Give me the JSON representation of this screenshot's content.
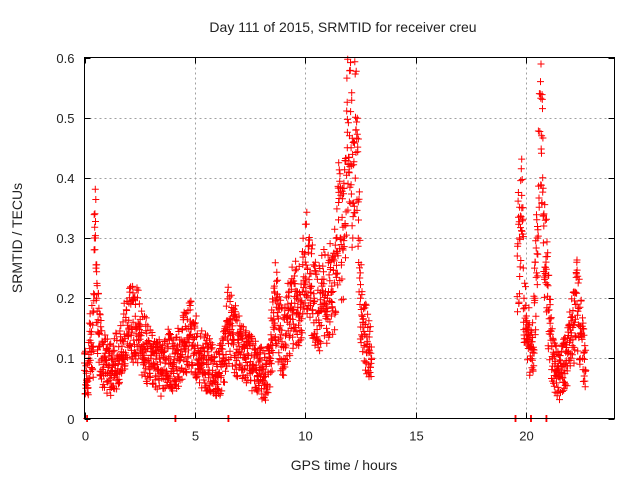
{
  "chart_data": {
    "type": "scatter",
    "title": "Day 111 of 2015, SRMTID for receiver creu",
    "xlabel": "GPS time / hours",
    "ylabel": "SRMTID / TECUs",
    "xlim": [
      0,
      24
    ],
    "ylim": [
      0,
      0.6
    ],
    "xticks": [
      0,
      5,
      10,
      15,
      20
    ],
    "xtick_labels": [
      "0",
      "5",
      "10",
      "15",
      "20"
    ],
    "yticks": [
      0,
      0.1,
      0.2,
      0.3,
      0.4,
      0.5,
      0.6
    ],
    "ytick_labels": [
      "0",
      "0.1",
      "0.2",
      "0.3",
      "0.4",
      "0.5",
      "0.6"
    ],
    "grid": true,
    "marker": "+",
    "color": "#ff0000",
    "series": [
      {
        "name": "SRMTID",
        "segments": [
          {
            "range": [
              0.0,
              13.0
            ],
            "points": [
              [
                0.0,
                0.08
              ],
              [
                0.1,
                0.06
              ],
              [
                0.15,
                0.05
              ],
              [
                0.2,
                0.1
              ],
              [
                0.25,
                0.13
              ],
              [
                0.3,
                0.14
              ],
              [
                0.4,
                0.12
              ],
              [
                0.45,
                0.3
              ],
              [
                0.5,
                0.3
              ],
              [
                0.52,
                0.25
              ],
              [
                0.55,
                0.2
              ],
              [
                0.6,
                0.16
              ],
              [
                0.65,
                0.14
              ],
              [
                0.7,
                0.12
              ],
              [
                0.8,
                0.1
              ],
              [
                1.0,
                0.09
              ],
              [
                1.2,
                0.08
              ],
              [
                1.5,
                0.1
              ],
              [
                1.7,
                0.12
              ],
              [
                1.8,
                0.14
              ],
              [
                2.0,
                0.15
              ],
              [
                2.2,
                0.16
              ],
              [
                2.3,
                0.17
              ],
              [
                2.5,
                0.14
              ],
              [
                2.7,
                0.12
              ],
              [
                3.0,
                0.1
              ],
              [
                3.3,
                0.09
              ],
              [
                3.5,
                0.08
              ],
              [
                3.8,
                0.1
              ],
              [
                4.0,
                0.09
              ],
              [
                4.2,
                0.1
              ],
              [
                4.5,
                0.12
              ],
              [
                4.8,
                0.14
              ],
              [
                5.0,
                0.12
              ],
              [
                5.3,
                0.1
              ],
              [
                5.6,
                0.09
              ],
              [
                5.8,
                0.08
              ],
              [
                6.0,
                0.07
              ],
              [
                6.3,
                0.1
              ],
              [
                6.5,
                0.16
              ],
              [
                6.7,
                0.14
              ],
              [
                7.0,
                0.12
              ],
              [
                7.3,
                0.1
              ],
              [
                7.6,
                0.09
              ],
              [
                7.9,
                0.08
              ],
              [
                8.2,
                0.07
              ],
              [
                8.4,
                0.1
              ],
              [
                8.5,
                0.13
              ],
              [
                8.6,
                0.22
              ],
              [
                8.8,
                0.15
              ],
              [
                9.0,
                0.12
              ],
              [
                9.2,
                0.16
              ],
              [
                9.4,
                0.18
              ],
              [
                9.6,
                0.2
              ],
              [
                9.8,
                0.19
              ],
              [
                10.0,
                0.26
              ],
              [
                10.1,
                0.25
              ],
              [
                10.2,
                0.22
              ],
              [
                10.4,
                0.2
              ],
              [
                10.6,
                0.18
              ],
              [
                10.8,
                0.21
              ],
              [
                11.0,
                0.2
              ],
              [
                11.2,
                0.22
              ],
              [
                11.4,
                0.24
              ],
              [
                11.5,
                0.33
              ],
              [
                11.6,
                0.3
              ],
              [
                11.7,
                0.28
              ],
              [
                11.8,
                0.32
              ],
              [
                11.9,
                0.45
              ],
              [
                12.0,
                0.47
              ],
              [
                12.05,
                0.51
              ],
              [
                12.1,
                0.42
              ],
              [
                12.2,
                0.46
              ],
              [
                12.3,
                0.48
              ],
              [
                12.4,
                0.36
              ],
              [
                12.5,
                0.2
              ],
              [
                12.6,
                0.16
              ],
              [
                12.7,
                0.14
              ],
              [
                12.8,
                0.12
              ],
              [
                12.9,
                0.11
              ],
              [
                13.0,
                0.1
              ]
            ]
          },
          {
            "range": [
              19.6,
              22.7
            ],
            "points": [
              [
                19.6,
                0.27
              ],
              [
                19.7,
                0.3
              ],
              [
                19.8,
                0.35
              ],
              [
                19.9,
                0.2
              ],
              [
                20.0,
                0.16
              ],
              [
                20.1,
                0.14
              ],
              [
                20.2,
                0.12
              ],
              [
                20.3,
                0.11
              ],
              [
                20.4,
                0.2
              ],
              [
                20.5,
                0.3
              ],
              [
                20.6,
                0.54
              ],
              [
                20.65,
                0.56
              ],
              [
                20.7,
                0.47
              ],
              [
                20.75,
                0.4
              ],
              [
                20.8,
                0.32
              ],
              [
                20.9,
                0.26
              ],
              [
                21.0,
                0.18
              ],
              [
                21.1,
                0.14
              ],
              [
                21.2,
                0.1
              ],
              [
                21.3,
                0.08
              ],
              [
                21.5,
                0.07
              ],
              [
                21.7,
                0.09
              ],
              [
                21.9,
                0.11
              ],
              [
                22.0,
                0.13
              ],
              [
                22.2,
                0.16
              ],
              [
                22.3,
                0.19
              ],
              [
                22.5,
                0.14
              ],
              [
                22.7,
                0.08
              ]
            ]
          }
        ]
      }
    ],
    "zero_markers_x": [
      0.1,
      4.1,
      6.5,
      19.5,
      20.2,
      20.9
    ]
  }
}
